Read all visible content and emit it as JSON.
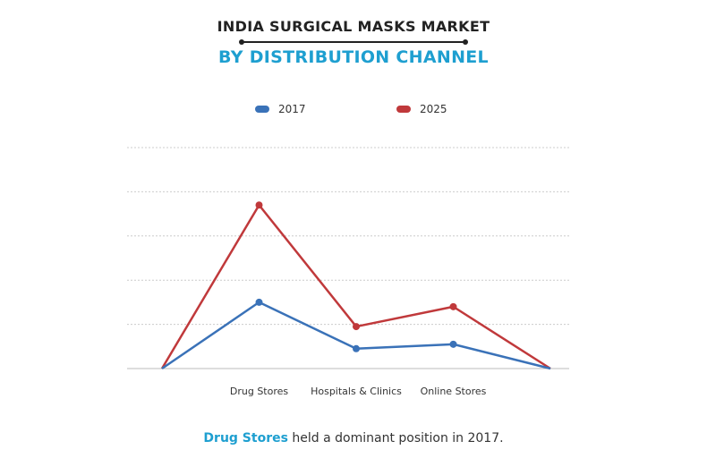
{
  "header": {
    "title": "INDIA SURGICAL MASKS MARKET",
    "subtitle": "BY DISTRIBUTION CHANNEL"
  },
  "footnote": {
    "highlight": "Drug Stores",
    "rest": "held a dominant position in 2017."
  },
  "colors": {
    "series_2017": "#3a72b8",
    "series_2025": "#c0393b",
    "accent": "#1e9fd0",
    "grid": "#cccccc"
  },
  "chart_data": {
    "type": "line",
    "title": "INDIA SURGICAL MASKS MARKET",
    "subtitle": "BY DISTRIBUTION CHANNEL",
    "categories": [
      "",
      "Drug Stores",
      "Hospitals & Clinics",
      "Online Stores",
      ""
    ],
    "series": [
      {
        "name": "2017",
        "values": [
          0,
          1.5,
          0.45,
          0.55,
          0
        ]
      },
      {
        "name": "2025",
        "values": [
          0,
          3.7,
          0.95,
          1.4,
          0
        ]
      }
    ],
    "ylim": [
      0,
      5
    ],
    "grid": true,
    "legend_position": "top-center",
    "xlabel": "",
    "ylabel": ""
  }
}
